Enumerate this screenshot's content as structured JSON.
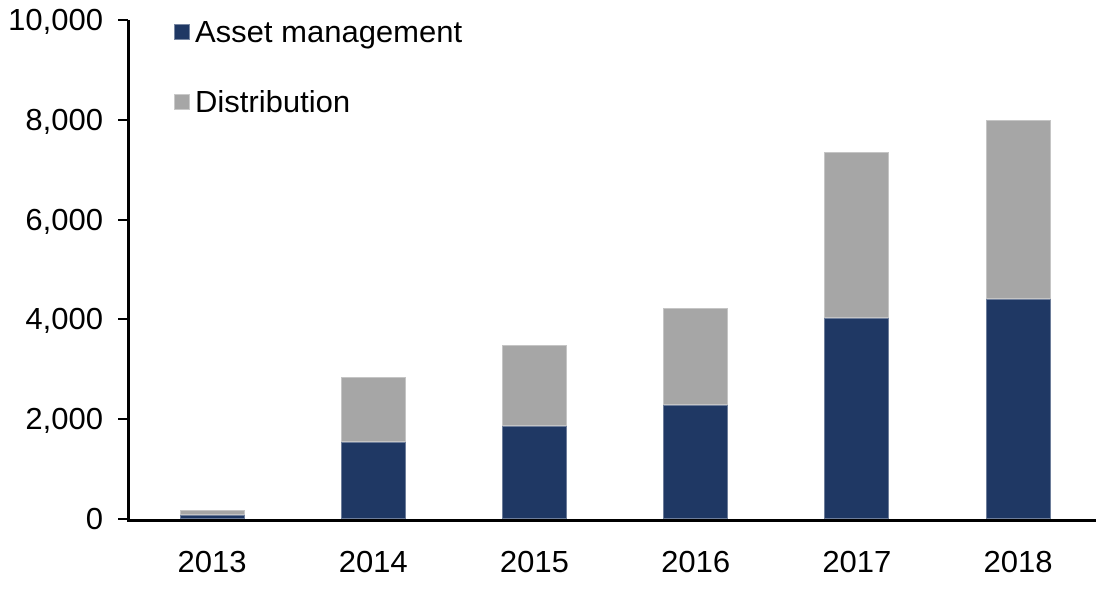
{
  "chart_data": {
    "type": "bar",
    "stacked": true,
    "title": "",
    "xlabel": "",
    "ylabel": "",
    "categories": [
      "2013",
      "2014",
      "2015",
      "2016",
      "2017",
      "2018"
    ],
    "series": [
      {
        "name": "Asset management",
        "color": "#1F3864",
        "values": [
          90,
          1540,
          1870,
          2290,
          4020,
          4400
        ]
      },
      {
        "name": "Distribution",
        "color": "#A6A6A6",
        "values": [
          90,
          1310,
          1620,
          1940,
          3330,
          3600
        ]
      }
    ],
    "totals": [
      180,
      2850,
      3490,
      4230,
      7350,
      8000
    ],
    "ylim": [
      0,
      10000
    ],
    "yticks": [
      0,
      2000,
      4000,
      6000,
      8000,
      10000
    ],
    "ytick_labels": [
      "0",
      "2,000",
      "4,000",
      "6,000",
      "8,000",
      "10,000"
    ],
    "grid": false,
    "legend_position": "top-left",
    "axis_color": "#000000",
    "text_color": "#000000",
    "background": "#FFFFFF"
  }
}
